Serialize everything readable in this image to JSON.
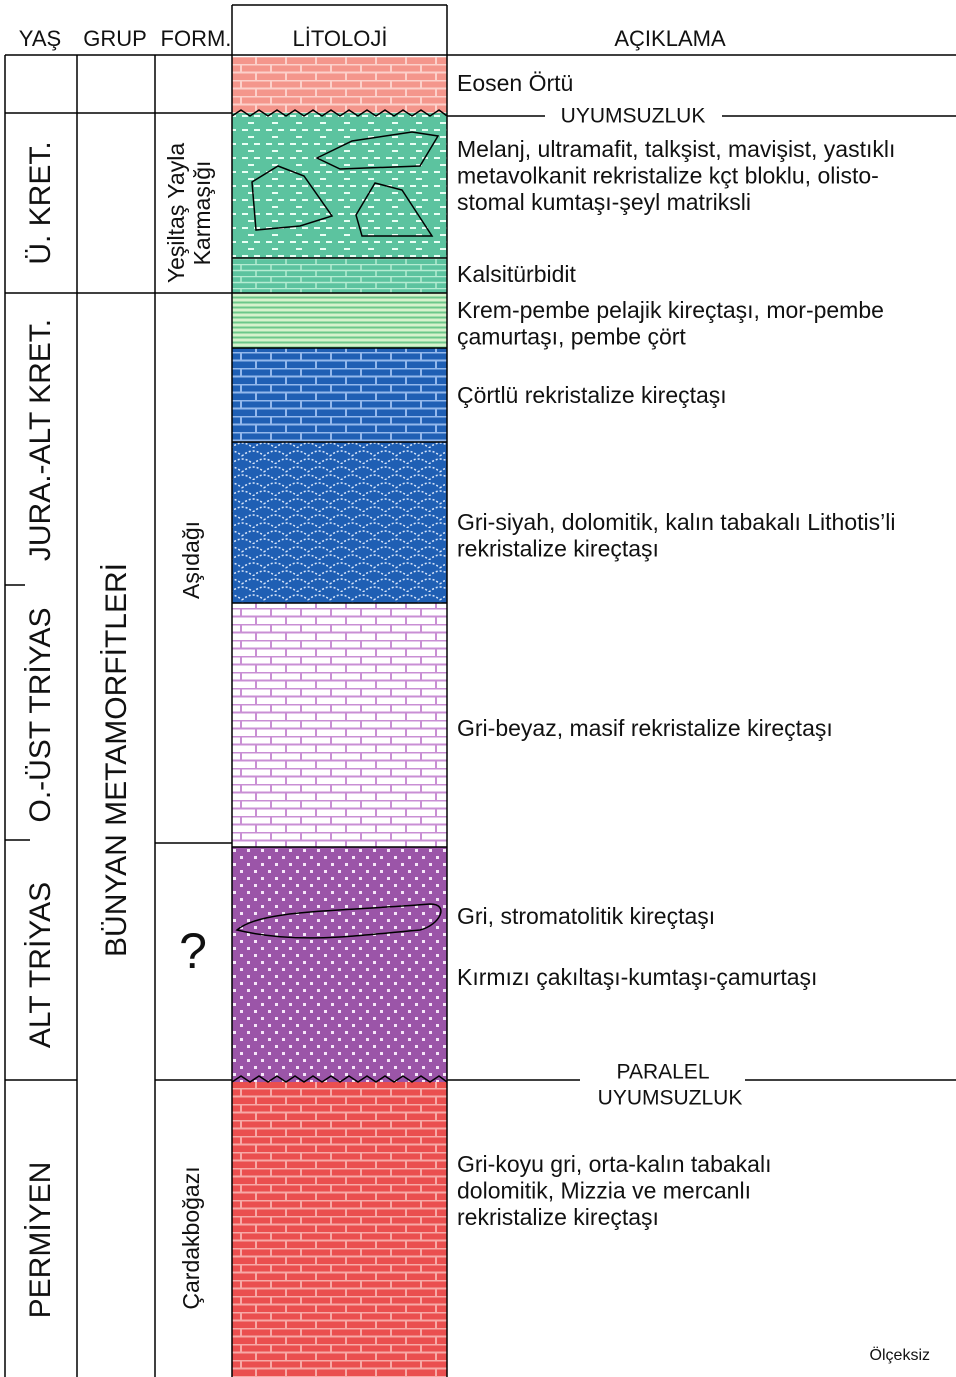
{
  "header": {
    "columns": [
      "YAŞ",
      "GRUP",
      "FORM.",
      "LİTOLOJİ",
      "AÇIKLAMA"
    ]
  },
  "ages": [
    "Ü. KRET.",
    "JURA.-ALT KRET.",
    "O.-ÜST TRİYAS",
    "ALT TRİYAS",
    "PERMİYEN"
  ],
  "group": "BÜNYAN METAMORFİTLERİ",
  "formations": [
    [
      "Yeşiltaş Yayla",
      "Karmaşığı"
    ],
    [
      "Aşıdağı"
    ],
    [
      "?"
    ],
    [
      "Çardakboğazı"
    ]
  ],
  "descriptions": [
    [
      "Eosen Örtü"
    ],
    [
      "Melanj, ultramafit, talkşist, mavişist, yastıklı",
      "metavolkanit rekristalize kçt bloklu, olisto-",
      "stomal kumtaşı-şeyl matriksli"
    ],
    [
      "Kalsitürbidit"
    ],
    [
      "Krem-pembe pelajik kireçtaşı, mor-pembe",
      "çamurtaşı, pembe çört"
    ],
    [
      "Çörtlü rekristalize kireçtaşı"
    ],
    [
      "Gri-siyah, dolomitik, kalın tabakalı Lithotis’li",
      "rekristalize kireçtaşı"
    ],
    [
      "Gri-beyaz, masif rekristalize kireçtaşı"
    ],
    [
      "Gri, stromatolitik kireçtaşı"
    ],
    [
      "Kırmızı çakıltaşı-kumtaşı-çamurtaşı"
    ],
    [
      "Gri-koyu gri, orta-kalın tabakalı",
      "dolomitik, Mizzia ve mercanlı",
      "rekristalize kireçtaşı"
    ]
  ],
  "unconformities": [
    [
      "UYUMSUZLUK"
    ],
    [
      "PARALEL",
      "UYUMSUZLUK"
    ]
  ],
  "note": "Ölçeksiz"
}
